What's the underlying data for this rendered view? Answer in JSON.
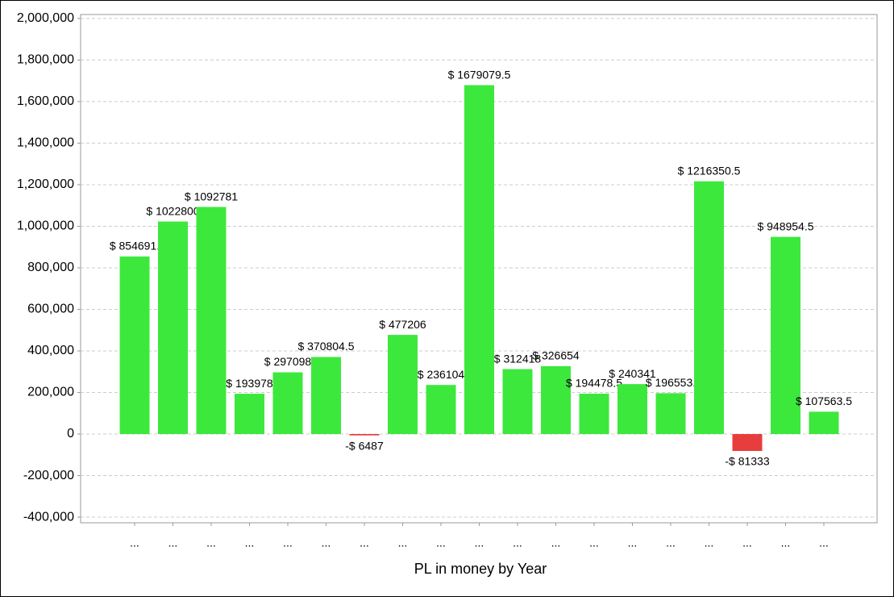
{
  "chart_data": {
    "type": "bar",
    "x_label": "PL in money by Year",
    "categories": [
      "...",
      "...",
      "...",
      "...",
      "...",
      "...",
      "...",
      "...",
      "...",
      "...",
      "...",
      "...",
      "...",
      "...",
      "...",
      "...",
      "...",
      "...",
      "..."
    ],
    "values": [
      854691,
      1022800,
      1092781,
      193978,
      297098,
      370804.5,
      -6487,
      477206,
      236104,
      1679079.5,
      312418,
      326654,
      194478.5,
      240341,
      196553,
      1216350.5,
      -81333,
      948954.5,
      107563.5
    ],
    "value_labels": [
      "$ 854691.",
      "$ 1022800",
      "$ 1092781",
      "$ 193978",
      "$ 297098",
      "$ 370804.5",
      "-$ 6487",
      "$ 477206",
      "$ 236104",
      "$ 1679079.5",
      "$ 312418",
      "$ 326654",
      "$ 194478.5",
      "$ 240341",
      "$ 196553.",
      "$ 1216350.5",
      "-$ 81333",
      "$ 948954.5",
      "$ 107563.5"
    ],
    "positive_color": "#3de83d",
    "negative_color": "#e83d3d",
    "ylim": [
      -427000,
      2019000
    ],
    "yticks": [
      {
        "value": -400000,
        "label": "-400,000"
      },
      {
        "value": -200000,
        "label": "-200,000"
      },
      0,
      {
        "value": 200000,
        "label": "200,000"
      },
      {
        "value": 400000,
        "label": "400,000"
      },
      {
        "value": 600000,
        "label": "600,000"
      },
      {
        "value": 800000,
        "label": "800,000"
      },
      {
        "value": 1000000,
        "label": "1,000,000"
      },
      {
        "value": 1200000,
        "label": "1,200,000"
      },
      {
        "value": 1400000,
        "label": "1,400,000"
      },
      {
        "value": 1600000,
        "label": "1,600,000"
      },
      {
        "value": 1800000,
        "label": "1,800,000"
      },
      {
        "value": 2000000,
        "label": "2,000,000"
      }
    ],
    "grid": true
  }
}
